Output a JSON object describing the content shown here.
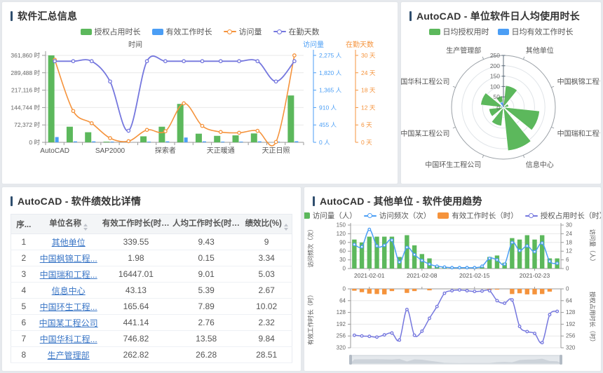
{
  "colors": {
    "green": "#5cb85c",
    "blue": "#4b9ef5",
    "orange": "#f5933c",
    "purple": "#7577de",
    "link": "#3a76c6",
    "title_bar": "#2f4e6e",
    "axis_text": "#666666",
    "grid": "#e8e8e8"
  },
  "panels": {
    "summary": {
      "title": "软件汇总信息",
      "legend": [
        {
          "label": "授权占用时长",
          "type": "rect",
          "color": "green"
        },
        {
          "label": "有效工作时长",
          "type": "rect",
          "color": "blue"
        },
        {
          "label": "访问量",
          "type": "line",
          "color": "orange"
        },
        {
          "label": "在勤天数",
          "type": "line",
          "color": "purple"
        }
      ]
    },
    "polar": {
      "title": "AutoCAD - 单位软件日人均使用时长",
      "legend": [
        {
          "label": "日均授权用时",
          "type": "rect",
          "color": "green"
        },
        {
          "label": "日均有效工作时长",
          "type": "rect",
          "color": "blue"
        }
      ]
    },
    "table": {
      "title": "AutoCAD - 软件绩效比详情",
      "columns": [
        {
          "label": "序...",
          "sortable": false
        },
        {
          "label": "单位名称",
          "sortable": true
        },
        {
          "label": "有效工作时长(时)...",
          "sortable": true
        },
        {
          "label": "人均工作时长(时)...",
          "sortable": true
        },
        {
          "label": "绩效比(%)",
          "sortable": true
        }
      ],
      "rows": [
        {
          "index": "1",
          "unit": "其他单位",
          "work_hours": "339.55",
          "per_capita": "9.43",
          "ratio": "9"
        },
        {
          "index": "2",
          "unit": "中国枫锦工程...",
          "work_hours": "1.98",
          "per_capita": "0.15",
          "ratio": "3.34"
        },
        {
          "index": "3",
          "unit": "中国瑞和工程...",
          "work_hours": "16447.01",
          "per_capita": "9.01",
          "ratio": "5.03"
        },
        {
          "index": "4",
          "unit": "信息中心",
          "work_hours": "43.13",
          "per_capita": "5.39",
          "ratio": "2.67"
        },
        {
          "index": "5",
          "unit": "中国环生工程...",
          "work_hours": "165.64",
          "per_capita": "7.89",
          "ratio": "10.02"
        },
        {
          "index": "6",
          "unit": "中国某工程公司",
          "work_hours": "441.14",
          "per_capita": "2.76",
          "ratio": "2.32"
        },
        {
          "index": "7",
          "unit": "中国华科工程...",
          "work_hours": "746.82",
          "per_capita": "13.58",
          "ratio": "9.84"
        },
        {
          "index": "8",
          "unit": "生产管理部",
          "work_hours": "262.82",
          "per_capita": "26.28",
          "ratio": "28.51"
        }
      ]
    },
    "trend": {
      "title": "AutoCAD - 其他单位 - 软件使用趋势",
      "legend": [
        {
          "label": "访问量（人）",
          "type": "rect",
          "color": "green"
        },
        {
          "label": "访问频次（次）",
          "type": "line",
          "color": "blue"
        },
        {
          "label": "有效工作时长（时）",
          "type": "rect",
          "color": "orange"
        },
        {
          "label": "授权占用时长（时）",
          "type": "line",
          "color": "purple"
        }
      ]
    }
  },
  "chart_data": [
    {
      "id": "summary",
      "type": "bar",
      "subtype": "bar+line dual right axes",
      "x_labels": [
        "AutoCAD",
        "SAP2000",
        "探索者",
        "天正暖通",
        "天正日照"
      ],
      "x_label_indices": [
        0,
        3,
        6,
        9,
        12
      ],
      "n_points": 14,
      "axes": {
        "hours": {
          "name": "时间",
          "max": 361860,
          "tick_labels": [
            "0 时",
            "72,372 时",
            "144,744 时",
            "217,116 时",
            "289,488 时",
            "361,860 时"
          ]
        },
        "visits": {
          "name": "访问量",
          "max": 2275,
          "color": "blue",
          "tick_labels": [
            "0 人",
            "455 人",
            "910 人",
            "1,365 人",
            "1,820 人",
            "2,275 人"
          ]
        },
        "days": {
          "name": "在勤天数",
          "max": 30,
          "color": "orange",
          "tick_labels": [
            "0 天",
            "6 天",
            "12 天",
            "18 天",
            "24 天",
            "30 天"
          ]
        }
      },
      "series": [
        {
          "name": "授权占用时长",
          "type": "bar",
          "axis": "hours",
          "color": "green",
          "values": [
            361860,
            65000,
            42000,
            1500,
            0,
            25000,
            65000,
            160000,
            36000,
            27000,
            29000,
            37000,
            0,
            195000
          ]
        },
        {
          "name": "有效工作时长",
          "type": "bar",
          "axis": "hours",
          "color": "blue",
          "values": [
            22000,
            4000,
            4000,
            3000,
            0,
            2500,
            4000,
            20000,
            4000,
            3000,
            3000,
            4000,
            1500,
            4500
          ]
        },
        {
          "name": "访问量",
          "type": "line",
          "axis": "visits",
          "color": "orange",
          "values": [
            2160,
            820,
            500,
            110,
            30,
            325,
            290,
            1020,
            430,
            270,
            250,
            300,
            10,
            2275
          ]
        },
        {
          "name": "在勤天数",
          "type": "line",
          "axis": "days",
          "color": "purple",
          "values": [
            28,
            28,
            28,
            21,
            4,
            28,
            28,
            28,
            28,
            28,
            28,
            28,
            21,
            28
          ]
        }
      ]
    },
    {
      "id": "polar",
      "type": "bar",
      "subtype": "polar rose",
      "categories": [
        "其他单位",
        "中国枫锦工程公司",
        "中国瑞和工程公司",
        "信息中心",
        "中国环生工程公司",
        "中国某工程公司",
        "中国华科工程公司",
        "生产管理部"
      ],
      "radial_ticks": [
        0,
        50,
        100,
        150,
        200,
        250
      ],
      "series": [
        {
          "name": "日均授权用时",
          "color": "green",
          "values": [
            105,
            25,
            175,
            210,
            90,
            70,
            110,
            55
          ]
        },
        {
          "name": "日均有效工作时长",
          "color": "blue",
          "values": [
            9.43,
            0.15,
            9.01,
            5.39,
            7.89,
            2.76,
            13.58,
            26.28
          ]
        }
      ]
    },
    {
      "id": "trend-top",
      "type": "bar",
      "subtype": "bar+line dual axis",
      "x_labels": [
        "2021-02-01",
        "2021-02-08",
        "2021-02-15",
        "2021-02-23"
      ],
      "x_label_indices": [
        2,
        9,
        16,
        24
      ],
      "n_points": 28,
      "axes": {
        "left": {
          "name": "访问频次（次）",
          "max": 150,
          "tick_labels": [
            "0",
            "30",
            "60",
            "90",
            "120",
            "150"
          ]
        },
        "right": {
          "name": "访问量（人）",
          "max": 30,
          "tick_labels": [
            "0",
            "6",
            "12",
            "18",
            "24",
            "30"
          ]
        }
      },
      "series": [
        {
          "name": "访问量（人）",
          "type": "bar",
          "axis": "right",
          "color": "green",
          "values": [
            20,
            18,
            22,
            22,
            22,
            22,
            8,
            23,
            16,
            10,
            7,
            2,
            1,
            1,
            1,
            1,
            1,
            1,
            8,
            9,
            4,
            21,
            20,
            23,
            20,
            23,
            7,
            7
          ]
        },
        {
          "name": "访问频次（次）",
          "type": "line",
          "axis": "left",
          "color": "blue",
          "values": [
            83,
            75,
            135,
            78,
            80,
            98,
            22,
            73,
            48,
            28,
            15,
            8,
            5,
            3,
            3,
            3,
            3,
            8,
            35,
            30,
            15,
            90,
            62,
            78,
            58,
            88,
            25,
            18
          ]
        }
      ]
    },
    {
      "id": "trend-bottom",
      "type": "bar",
      "subtype": "inverted bar+line dual axis with datazoom slider",
      "n_points": 28,
      "axes": {
        "left": {
          "name": "有效工作时长（时）",
          "max": 320,
          "tick_labels": [
            "0",
            "64",
            "128",
            "192",
            "256",
            "320"
          ]
        },
        "right": {
          "name": "授权占用时长（时）",
          "max": 320,
          "tick_labels": [
            "0",
            "64",
            "128",
            "192",
            "256",
            "320"
          ]
        }
      },
      "series": [
        {
          "name": "有效工作时长（时）",
          "type": "bar",
          "axis": "left",
          "color": "orange",
          "values": [
            10,
            18,
            26,
            28,
            30,
            12,
            0,
            22,
            12,
            0,
            8,
            0,
            0,
            0,
            0,
            0,
            0,
            0,
            6,
            4,
            0,
            28,
            24,
            30,
            30,
            28,
            15,
            0
          ]
        },
        {
          "name": "授权占用时长（时）",
          "type": "line",
          "axis": "right",
          "color": "purple",
          "values": [
            252,
            256,
            258,
            262,
            250,
            240,
            278,
            112,
            252,
            230,
            160,
            96,
            24,
            10,
            6,
            10,
            14,
            12,
            10,
            64,
            78,
            60,
            204,
            232,
            242,
            292,
            140,
            122
          ]
        }
      ]
    }
  ]
}
